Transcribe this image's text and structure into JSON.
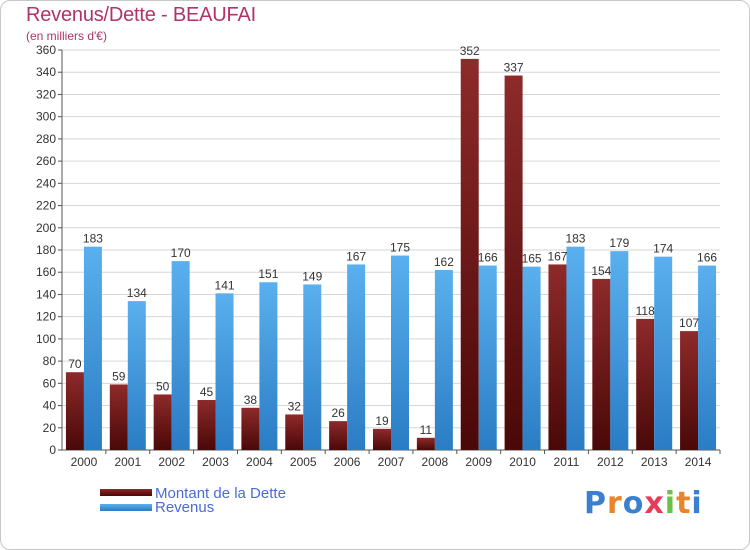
{
  "header": {
    "title": "Revenus/Dette - BEAUFAI",
    "subtitle": "(en milliers d'€)"
  },
  "chart_data": {
    "type": "bar",
    "title": "Revenus/Dette - BEAUFAI",
    "subtitle": "(en milliers d'€)",
    "categories": [
      "2000",
      "2001",
      "2002",
      "2003",
      "2004",
      "2005",
      "2006",
      "2007",
      "2008",
      "2009",
      "2010",
      "2011",
      "2012",
      "2013",
      "2014"
    ],
    "series": [
      {
        "name": "Montant de la Dette",
        "color": "#7a1a1a",
        "values": [
          70,
          59,
          50,
          45,
          38,
          32,
          26,
          19,
          11,
          352,
          337,
          167,
          154,
          118,
          107
        ]
      },
      {
        "name": "Revenus",
        "color": "#4aa3e8",
        "values": [
          183,
          134,
          170,
          141,
          151,
          149,
          167,
          175,
          162,
          166,
          165,
          183,
          179,
          174,
          166
        ]
      }
    ],
    "ylim": [
      0,
      360
    ],
    "ytick_step": 20,
    "grid": true,
    "legend_position": "bottom-left"
  },
  "logo": {
    "letters": [
      {
        "char": "P",
        "color": "#3a7fd0"
      },
      {
        "char": "r",
        "color": "#e8842a"
      },
      {
        "char": "o",
        "color": "#3a7fd0"
      },
      {
        "char": "x",
        "color": "#e83a5a"
      },
      {
        "char": "i",
        "color": "#6cc04a"
      },
      {
        "char": "t",
        "color": "#e8842a"
      },
      {
        "char": "i",
        "color": "#3a7fd0"
      }
    ]
  }
}
